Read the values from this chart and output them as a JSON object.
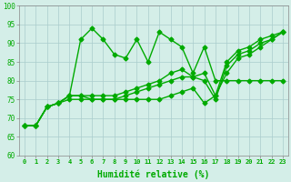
{
  "xlabel": "Humidité relative (%)",
  "xlim": [
    -0.5,
    23.5
  ],
  "ylim": [
    60,
    100
  ],
  "yticks": [
    60,
    65,
    70,
    75,
    80,
    85,
    90,
    95,
    100
  ],
  "xticks": [
    0,
    1,
    2,
    3,
    4,
    5,
    6,
    7,
    8,
    9,
    10,
    11,
    12,
    13,
    14,
    15,
    16,
    17,
    18,
    19,
    20,
    21,
    22,
    23
  ],
  "background_color": "#d4eee8",
  "grid_color": "#aacccc",
  "line_color": "#00aa00",
  "lines": [
    [
      68,
      68,
      73,
      74,
      76,
      91,
      94,
      91,
      87,
      86,
      91,
      85,
      93,
      91,
      89,
      82,
      89,
      80,
      80,
      80,
      80,
      80,
      80,
      80
    ],
    [
      68,
      68,
      73,
      74,
      76,
      76,
      76,
      76,
      76,
      77,
      78,
      79,
      80,
      82,
      83,
      81,
      82,
      76,
      85,
      88,
      89,
      91,
      92,
      93
    ],
    [
      68,
      68,
      73,
      74,
      76,
      76,
      75,
      75,
      75,
      76,
      77,
      78,
      79,
      80,
      81,
      81,
      80,
      75,
      84,
      87,
      88,
      90,
      91,
      93
    ],
    [
      68,
      68,
      73,
      74,
      75,
      75,
      75,
      75,
      75,
      75,
      75,
      75,
      75,
      76,
      77,
      78,
      74,
      76,
      82,
      86,
      87,
      89,
      91,
      93
    ]
  ],
  "marker": "D",
  "markersize": 2.5,
  "linewidth": 1.0
}
